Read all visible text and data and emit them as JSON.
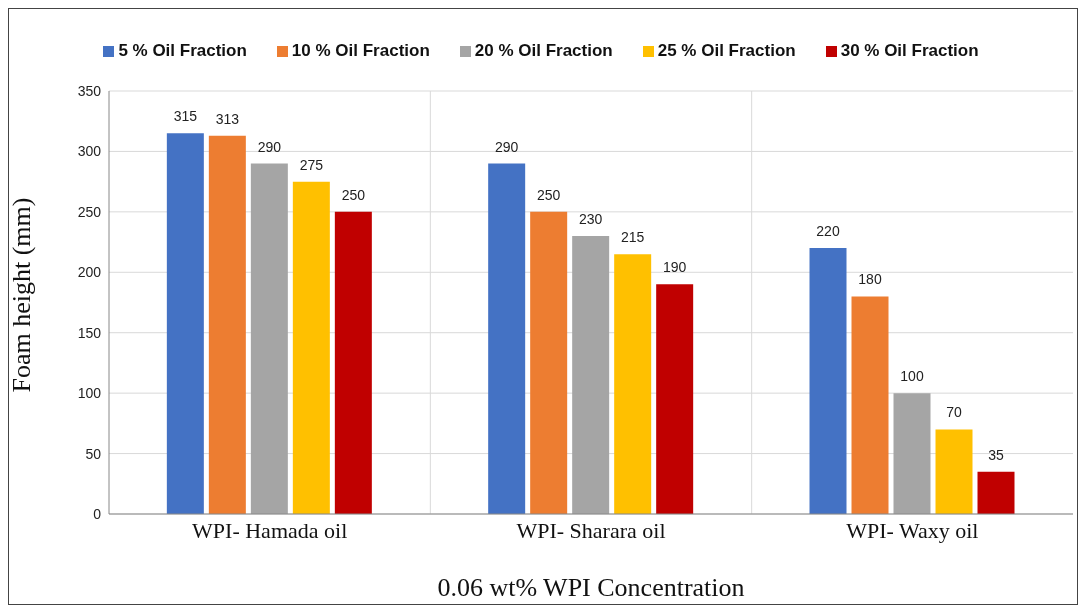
{
  "chart_data": {
    "type": "bar",
    "xlabel": "0.06 wt% WPI Concentration",
    "ylabel": "Foam height (mm)",
    "categories": [
      "WPI- Hamada oil",
      "WPI- Sharara oil",
      "WPI- Waxy oil"
    ],
    "series": [
      {
        "name": "5 % Oil Fraction",
        "color": "#4472c4",
        "values": [
          315,
          290,
          220
        ]
      },
      {
        "name": "10 % Oil Fraction",
        "color": "#ed7d31",
        "values": [
          313,
          250,
          180
        ]
      },
      {
        "name": "20 % Oil Fraction",
        "color": "#a5a5a5",
        "values": [
          290,
          230,
          100
        ]
      },
      {
        "name": "25 % Oil Fraction",
        "color": "#ffc000",
        "values": [
          275,
          215,
          70
        ]
      },
      {
        "name": "30 % Oil Fraction",
        "color": "#c00000",
        "values": [
          250,
          190,
          35
        ]
      }
    ],
    "ylim": [
      0,
      350
    ],
    "yticks": [
      0,
      50,
      100,
      150,
      200,
      250,
      300,
      350
    ],
    "grid": true,
    "legend": "top",
    "data_labels": true
  }
}
